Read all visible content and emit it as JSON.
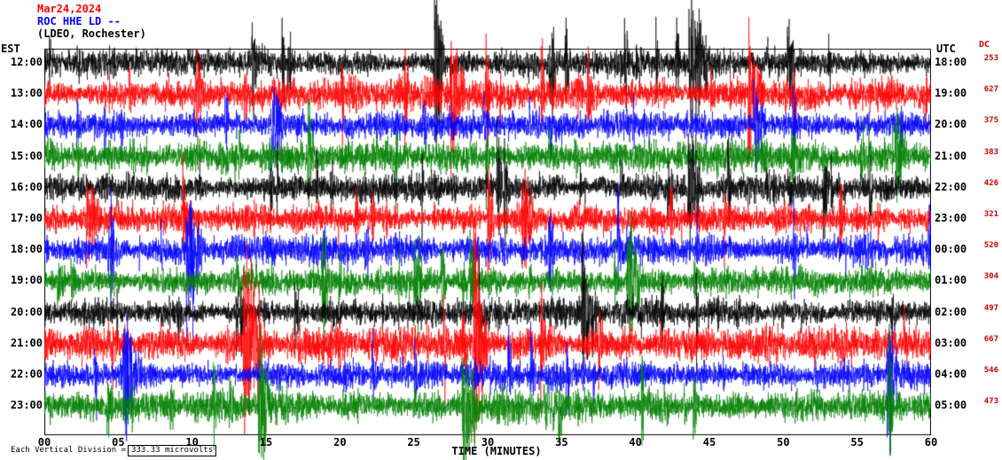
{
  "header": {
    "date": "Mar24,2024",
    "station": "ROC HHE LD --",
    "location": "(LDEO, Rochester)"
  },
  "axis": {
    "left_label": "EST",
    "right_label": "UTC",
    "dc_label": "DC",
    "xlabel": "TIME (MINUTES)",
    "x_ticks": [
      "00",
      "05",
      "10",
      "15",
      "20",
      "25",
      "30",
      "35",
      "40",
      "45",
      "50",
      "55",
      "60"
    ]
  },
  "footer": {
    "division_label": "Each Vertical Division =",
    "division_value": "333.33 microvolts"
  },
  "chart_data": {
    "type": "line",
    "subtype": "helicorder-seismogram",
    "title": "ROC HHE LD -- (LDEO, Rochester) Mar24,2024",
    "xlabel": "TIME (MINUTES)",
    "x_range_minutes": [
      0,
      60
    ],
    "x_tick_step_minutes": 5,
    "vertical_division_microvolts": 333.33,
    "trace_color_cycle": [
      "#000000",
      "#ff0000",
      "#0000ff",
      "#008000"
    ],
    "rows": [
      {
        "est": "12:00",
        "utc": "18:00",
        "dc": 253,
        "color": "#000000",
        "amplitude": 1.0
      },
      {
        "est": "13:00",
        "utc": "19:00",
        "dc": 627,
        "color": "#ff0000",
        "amplitude": 1.1
      },
      {
        "est": "14:00",
        "utc": "20:00",
        "dc": 375,
        "color": "#0000ff",
        "amplitude": 1.0
      },
      {
        "est": "15:00",
        "utc": "21:00",
        "dc": 383,
        "color": "#008000",
        "amplitude": 1.1
      },
      {
        "est": "16:00",
        "utc": "22:00",
        "dc": 426,
        "color": "#000000",
        "amplitude": 1.0
      },
      {
        "est": "17:00",
        "utc": "23:00",
        "dc": 321,
        "color": "#ff0000",
        "amplitude": 1.0
      },
      {
        "est": "18:00",
        "utc": "00:00",
        "dc": 520,
        "color": "#0000ff",
        "amplitude": 1.1
      },
      {
        "est": "19:00",
        "utc": "01:00",
        "dc": 304,
        "color": "#008000",
        "amplitude": 1.0
      },
      {
        "est": "20:00",
        "utc": "02:00",
        "dc": 497,
        "color": "#000000",
        "amplitude": 1.0
      },
      {
        "est": "21:00",
        "utc": "03:00",
        "dc": 667,
        "color": "#ff0000",
        "amplitude": 1.25
      },
      {
        "est": "22:00",
        "utc": "04:00",
        "dc": 546,
        "color": "#0000ff",
        "amplitude": 1.0
      },
      {
        "est": "23:00",
        "utc": "05:00",
        "dc": 473,
        "color": "#008000",
        "amplitude": 1.1
      }
    ]
  }
}
